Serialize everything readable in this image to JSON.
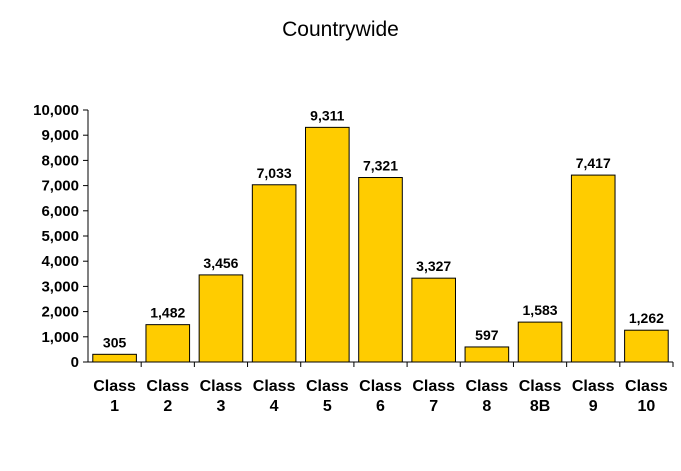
{
  "chart_data": {
    "type": "bar",
    "title": "Countrywide",
    "xlabel": "",
    "ylabel": "",
    "categories": [
      "Class 1",
      "Class 2",
      "Class 3",
      "Class 4",
      "Class 5",
      "Class 6",
      "Class 7",
      "Class 8",
      "Class 8B",
      "Class 9",
      "Class 10"
    ],
    "values": [
      305,
      1482,
      3456,
      7033,
      9311,
      7321,
      3327,
      597,
      1583,
      7417,
      1262
    ],
    "value_labels": [
      "305",
      "1,482",
      "3,456",
      "7,033",
      "9,311",
      "7,321",
      "3,327",
      "597",
      "1,583",
      "7,417",
      "1,262"
    ],
    "ylim": [
      0,
      10000
    ],
    "yticks": [
      0,
      1000,
      2000,
      3000,
      4000,
      5000,
      6000,
      7000,
      8000,
      9000,
      10000
    ],
    "ytick_labels": [
      "0",
      "1,000",
      "2,000",
      "3,000",
      "4,000",
      "5,000",
      "6,000",
      "7,000",
      "8,000",
      "9,000",
      "10,000"
    ],
    "grid": false,
    "legend": "none",
    "bar_color": "#FFCC00",
    "bar_outline_color": "#000000"
  }
}
